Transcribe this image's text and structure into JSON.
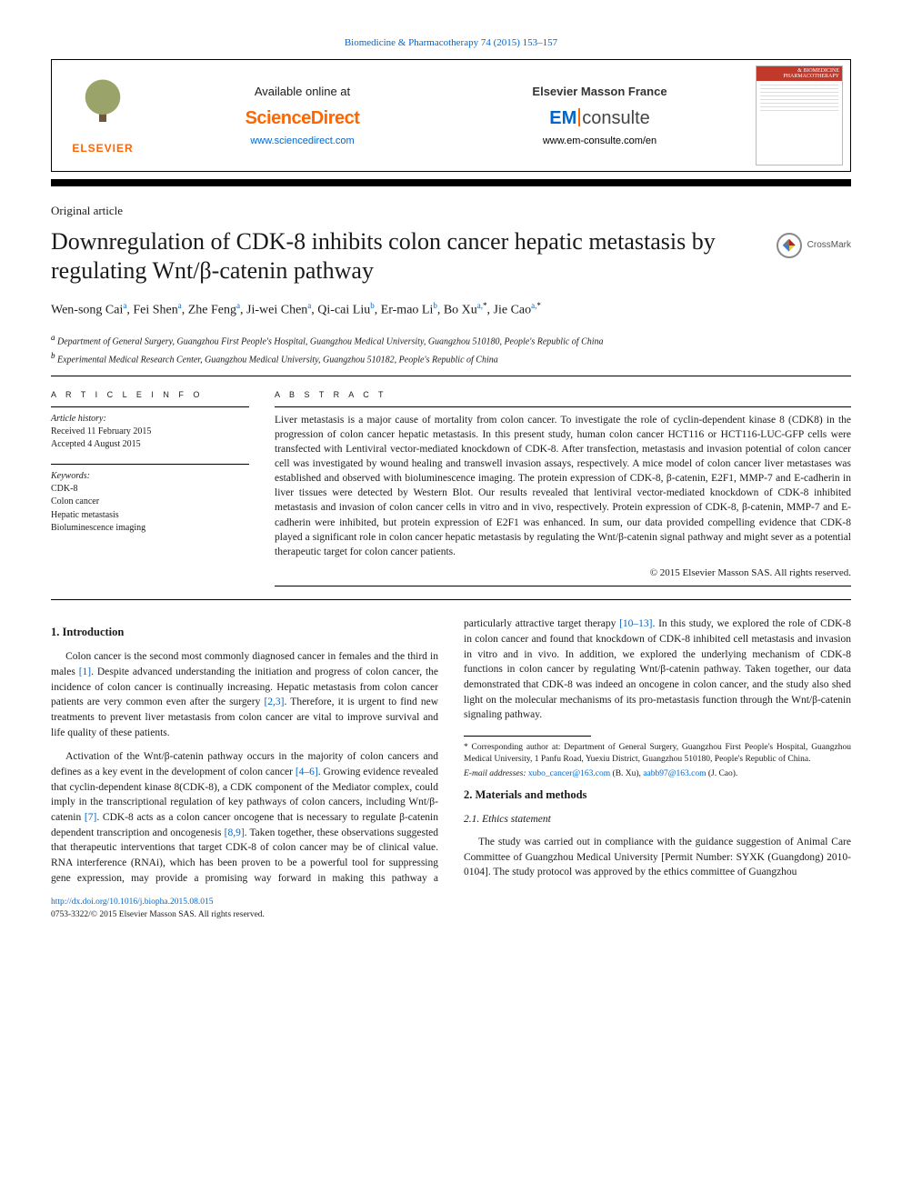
{
  "journal_header_link": "Biomedicine & Pharmacotherapy 74 (2015) 153–157",
  "header": {
    "elsevier": "ELSEVIER",
    "available_at": "Available online at",
    "scidirect": "ScienceDirect",
    "scidirect_url": "www.sciencedirect.com",
    "masson": "Elsevier Masson France",
    "em": "EM",
    "consulte": "consulte",
    "em_url": "www.em-consulte.com/en",
    "cover_band": "& BIOMEDICINE PHARMACOTHERAPY"
  },
  "article_type": "Original article",
  "title": "Downregulation of CDK-8 inhibits colon cancer hepatic metastasis by regulating Wnt/β-catenin pathway",
  "crossmark": "CrossMark",
  "authors_html": "Wen-song Cai<sup class='sup'>a</sup>, Fei Shen<sup class='sup'>a</sup>, Zhe Feng<sup class='sup'>a</sup>, Ji-wei Chen<sup class='sup'>a</sup>, Qi-cai Liu<sup class='sup'>b</sup>, Er-mao Li<sup class='sup'>b</sup>, Bo Xu<sup class='sup'>a,</sup><sup class='sup-black'>*</sup>, Jie Cao<sup class='sup'>a,</sup><sup class='sup-black'>*</sup>",
  "affiliations": {
    "a": "Department of General Surgery, Guangzhou First People's Hospital, Guangzhou Medical University, Guangzhou 510180, People's Republic of China",
    "b": "Experimental Medical Research Center, Guangzhou Medical University, Guangzhou 510182, People's Republic of China"
  },
  "info": {
    "article_info_head": "A R T I C L E   I N F O",
    "abstract_head": "A B S T R A C T",
    "history_label": "Article history:",
    "received": "Received 11 February 2015",
    "accepted": "Accepted 4 August 2015",
    "keywords_label": "Keywords:",
    "keywords": [
      "CDK-8",
      "Colon cancer",
      "Hepatic metastasis",
      "Bioluminescence imaging"
    ]
  },
  "abstract": "Liver metastasis is a major cause of mortality from colon cancer. To investigate the role of cyclin-dependent kinase 8 (CDK8) in the progression of colon cancer hepatic metastasis. In this present study, human colon cancer HCT116 or HCT116-LUC-GFP cells were transfected with Lentiviral vector-mediated knockdown of CDK-8. After transfection, metastasis and invasion potential of colon cancer cell was investigated by wound healing and transwell invasion assays, respectively. A mice model of colon cancer liver metastases was established and observed with bioluminescence imaging. The protein expression of CDK-8, β-catenin, E2F1, MMP-7 and E-cadherin in liver tissues were detected by Western Blot. Our results revealed that lentiviral vector-mediated knockdown of CDK-8 inhibited metastasis and invasion of colon cancer cells in vitro and in vivo, respectively. Protein expression of CDK-8, β-catenin, MMP-7 and E-cadherin were inhibited, but protein expression of E2F1 was enhanced. In sum, our data provided compelling evidence that CDK-8 played a significant role in colon cancer hepatic metastasis by regulating the Wnt/β-catenin signal pathway and might sever as a potential therapeutic target for colon cancer patients.",
  "copyright": "© 2015 Elsevier Masson SAS. All rights reserved.",
  "sections": {
    "intro_head": "1. Introduction",
    "intro_p1_a": "Colon cancer is the second most commonly diagnosed cancer in females and the third in males ",
    "intro_p1_cite1": "[1]",
    "intro_p1_b": ". Despite advanced understanding the initiation and progress of colon cancer, the incidence of colon cancer is continually increasing. Hepatic metastasis from colon cancer patients are very common even after the surgery ",
    "intro_p1_cite2": "[2,3]",
    "intro_p1_c": ". Therefore, it is urgent to find new treatments to prevent liver metastasis from colon cancer are vital to improve survival and life quality of these patients.",
    "intro_p2_a": "Activation of the Wnt/β-catenin pathway occurs in the majority of colon cancers and defines as a key event in the development of colon cancer ",
    "intro_p2_cite1": "[4–6]",
    "intro_p2_b": ". Growing evidence revealed that cyclin-dependent kinase 8(CDK-8), a CDK component of the Mediator complex, could imply in the transcriptional regulation of key pathways of colon cancers, including Wnt/β-catenin ",
    "intro_p2_cite2": "[7]",
    "intro_p2_c": ". CDK-8 acts as a colon cancer oncogene that is necessary to regulate β-catenin dependent transcription and oncogenesis ",
    "intro_p2_cite3": "[8,9]",
    "intro_p2_d": ". Taken together, these observations suggested that therapeutic interventions that target CDK-8 of colon cancer may be of clinical value. RNA interference (RNAi), which has been proven to be a powerful tool for suppressing gene expression, may provide a promising way forward in making this pathway a particularly attractive target therapy ",
    "intro_p2_cite4": "[10–13]",
    "intro_p2_e": ". In this study, we explored the role of CDK-8 in colon cancer and found that knockdown of CDK-8 inhibited cell metastasis and invasion in vitro and in vivo. In addition, we explored the underlying mechanism of CDK-8 functions in colon cancer by regulating Wnt/β-catenin pathway. Taken together, our data demonstrated that CDK-8 was indeed an oncogene in colon cancer, and the study also shed light on the molecular mechanisms of its pro-metastasis function through the Wnt/β-catenin signaling pathway.",
    "methods_head": "2. Materials and methods",
    "ethics_head": "2.1. Ethics statement",
    "ethics_p": "The study was carried out in compliance with the guidance suggestion of Animal Care Committee of Guangzhou Medical University [Permit Number: SYXK (Guangdong) 2010-0104]. The study protocol was approved by the ethics committee of Guangzhou"
  },
  "footnotes": {
    "corresponding": "* Corresponding author at: Department of General Surgery, Guangzhou First People's Hospital, Guangzhou Medical University, 1 Panfu Road, Yuexiu District, Guangzhou 510180, People's Republic of China.",
    "emails_label": "E-mail addresses: ",
    "email1": "xubo_cancer@163.com",
    "email1_who": " (B. Xu), ",
    "email2": "aabb97@163.com",
    "email2_who": " (J. Cao)."
  },
  "bottom": {
    "doi": "http://dx.doi.org/10.1016/j.biopha.2015.08.015",
    "issn_line": "0753-3322/© 2015 Elsevier Masson SAS. All rights reserved."
  },
  "colors": {
    "link": "#0066cc",
    "accent": "#ff6600",
    "text": "#1a1a1a"
  }
}
